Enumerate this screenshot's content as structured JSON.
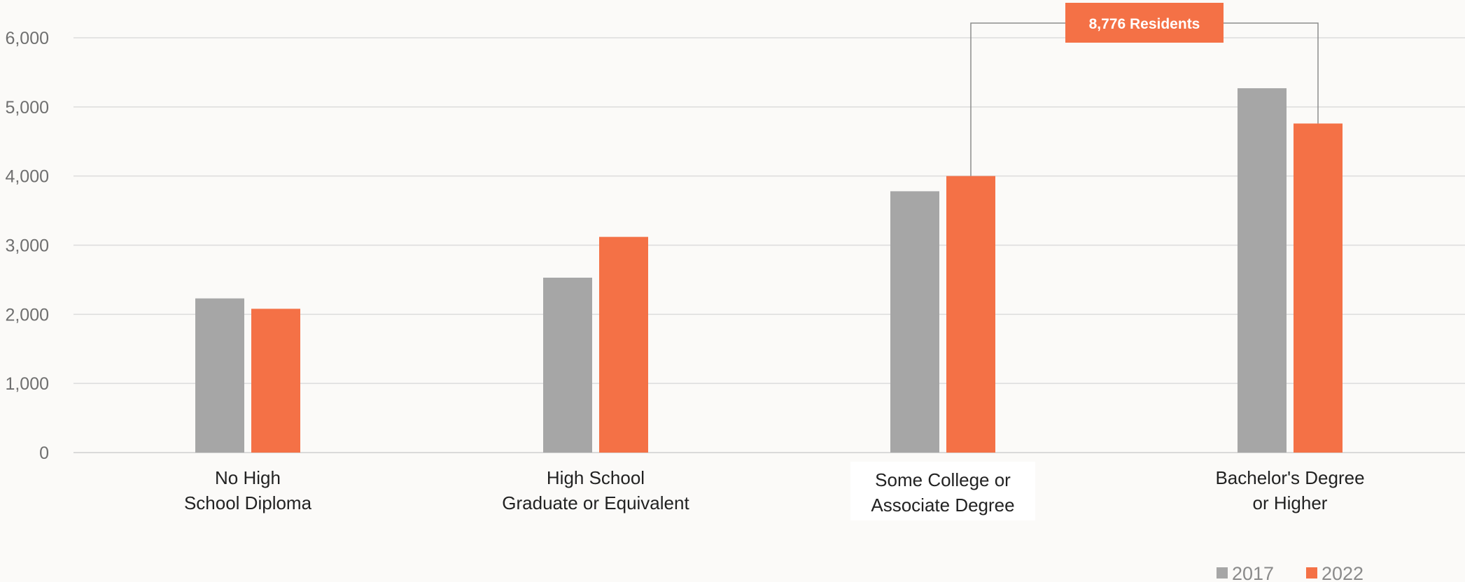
{
  "chart_data": {
    "type": "bar",
    "title": "",
    "xlabel": "",
    "ylabel": "",
    "categories": [
      [
        "No High",
        "School Diploma"
      ],
      [
        "High School",
        "Graduate or Equivalent"
      ],
      [
        "Some College or",
        "Associate Degree"
      ],
      [
        "Bachelor's Degree",
        "or Higher"
      ]
    ],
    "series": [
      {
        "name": "2017",
        "color": "#a6a6a6",
        "values": [
          2230,
          2530,
          3780,
          5270
        ]
      },
      {
        "name": "2022",
        "color": "#f47146",
        "values": [
          2080,
          3120,
          4000,
          4760
        ]
      }
    ],
    "ylim": [
      0,
      6000
    ],
    "yticks": [
      {
        "value": 0,
        "label": "0"
      },
      {
        "value": 1000,
        "label": "1,000"
      },
      {
        "value": 2000,
        "label": "2,000"
      },
      {
        "value": 3000,
        "label": "3,000"
      },
      {
        "value": 4000,
        "label": "4,000"
      },
      {
        "value": 5000,
        "label": "5,000"
      },
      {
        "value": 6000,
        "label": "6,000"
      }
    ],
    "grid": true,
    "legend": "bottom-right",
    "annotation": {
      "text": "8,776 Residents",
      "color": "#f47146",
      "from": {
        "category": 2,
        "series": 1
      },
      "to": {
        "category": 3,
        "series": 1
      }
    }
  }
}
